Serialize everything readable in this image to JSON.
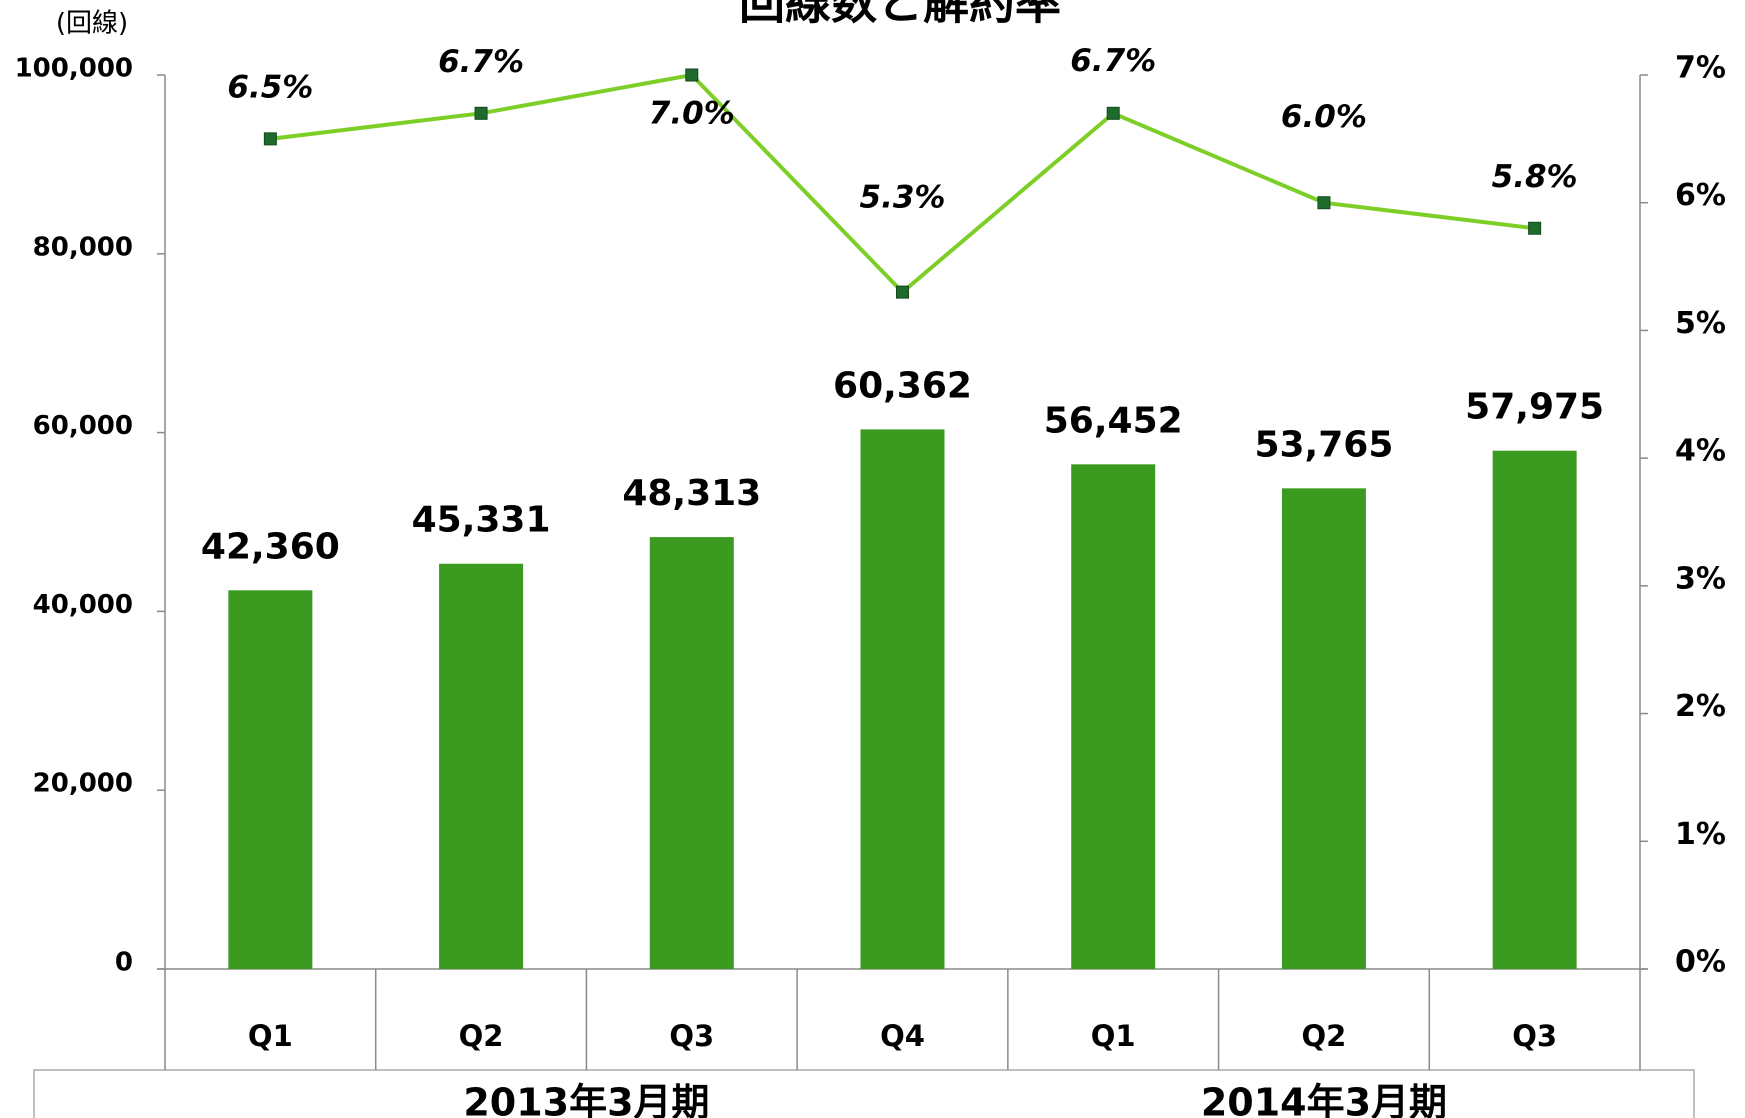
{
  "chart_data": {
    "type": "bar-line",
    "title": "回線数と解約率",
    "y_unit": "(回線)",
    "categories": [
      "Q1",
      "Q2",
      "Q3",
      "Q4",
      "Q1",
      "Q2",
      "Q3"
    ],
    "x_groups": [
      "2013年3月期",
      "2014年3月期"
    ],
    "series": [
      {
        "type": "bar",
        "color": "#3a9b20",
        "values": [
          42360,
          45331,
          48313,
          60362,
          56452,
          53765,
          57975
        ],
        "value_labels": [
          "42,360",
          "45,331",
          "48,313",
          "60,362",
          "56,452",
          "53,765",
          "57,975"
        ]
      },
      {
        "type": "line",
        "axis": "y2",
        "color": "#7dcf28",
        "marker_color": "#1f6b2c",
        "values": [
          6.5,
          6.7,
          7.0,
          5.3,
          6.7,
          6.0,
          5.8
        ],
        "value_labels": [
          "6.5%",
          "6.7%",
          "7.0%",
          "5.3%",
          "6.7%",
          "6.0%",
          "5.8%"
        ]
      }
    ],
    "ylim": [
      0,
      100000
    ],
    "yticks": [
      0,
      {
        "value": 20000,
        "label": "20,000"
      },
      {
        "value": 40000,
        "label": "40,000"
      },
      {
        "value": 60000,
        "label": "60,000"
      },
      {
        "value": 80000,
        "label": "80,000"
      },
      {
        "value": 100000,
        "label": "100,000"
      }
    ],
    "y2lim": [
      0,
      7
    ],
    "y2ticks": [
      {
        "value": 0,
        "label": "0%"
      },
      {
        "value": 1,
        "label": "1%"
      },
      {
        "value": 2,
        "label": "2%"
      },
      {
        "value": 3,
        "label": "3%"
      },
      {
        "value": 4,
        "label": "4%"
      },
      {
        "value": 5,
        "label": "5%"
      },
      {
        "value": 6,
        "label": "6%"
      },
      {
        "value": 7,
        "label": "7%"
      }
    ]
  }
}
